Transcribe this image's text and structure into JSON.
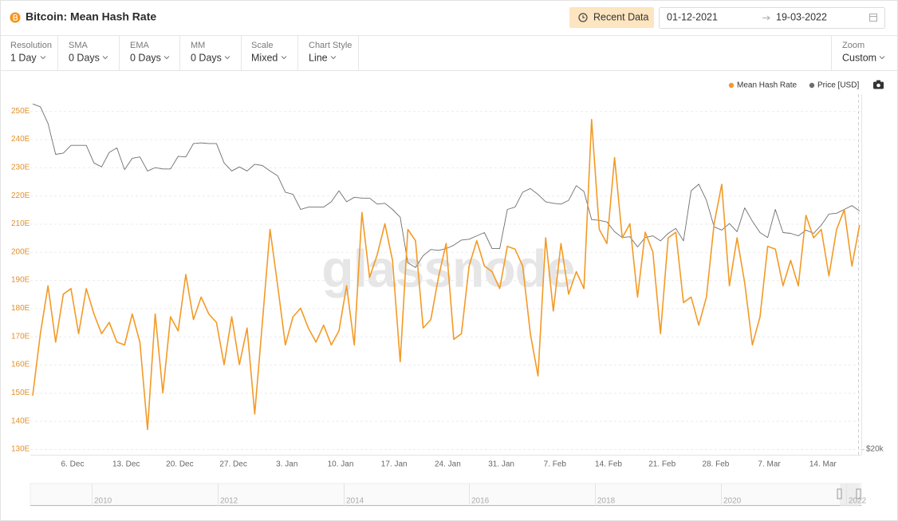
{
  "header": {
    "title": "Bitcoin: Mean Hash Rate",
    "button": "Recent Data",
    "date_from": "01-12-2021",
    "date_to": "19-03-2022"
  },
  "toolbar": [
    {
      "label": "Resolution",
      "value": "1 Day"
    },
    {
      "label": "SMA",
      "value": "0 Days"
    },
    {
      "label": "EMA",
      "value": "0 Days"
    },
    {
      "label": "MM",
      "value": "0 Days"
    },
    {
      "label": "Scale",
      "value": "Mixed"
    },
    {
      "label": "Chart Style",
      "value": "Line"
    },
    {
      "label": "Zoom",
      "value": "Custom"
    }
  ],
  "watermark": "glassnode",
  "navigator": {
    "labels": [
      "2010",
      "2012",
      "2014",
      "2016",
      "2018",
      "2020",
      "2022"
    ]
  },
  "chart_data": {
    "type": "line",
    "legend": "top-right",
    "grid": true,
    "categories": [
      null,
      null,
      null,
      null,
      null,
      "6. Dec",
      null,
      null,
      null,
      null,
      null,
      null,
      "13. Dec",
      null,
      null,
      null,
      null,
      null,
      null,
      "20. Dec",
      null,
      null,
      null,
      null,
      null,
      null,
      "27. Dec",
      null,
      null,
      null,
      null,
      null,
      null,
      "3. Jan",
      null,
      null,
      null,
      null,
      null,
      null,
      "10. Jan",
      null,
      null,
      null,
      null,
      null,
      null,
      "17. Jan",
      null,
      null,
      null,
      null,
      null,
      null,
      "24. Jan",
      null,
      null,
      null,
      null,
      null,
      null,
      "31. Jan",
      null,
      null,
      null,
      null,
      null,
      null,
      "7. Feb",
      null,
      null,
      null,
      null,
      null,
      null,
      "14. Feb",
      null,
      null,
      null,
      null,
      null,
      null,
      "21. Feb",
      null,
      null,
      null,
      null,
      null,
      null,
      "28. Feb",
      null,
      null,
      null,
      null,
      null,
      null,
      "7. Mar",
      null,
      null,
      null,
      null,
      null,
      null,
      "14. Mar",
      null,
      null,
      null,
      null,
      null
    ],
    "ylim": [
      130,
      256
    ],
    "yticks": [
      {
        "value": 130,
        "label": "130E"
      },
      {
        "value": 140,
        "label": "140E"
      },
      {
        "value": 150,
        "label": "150E"
      },
      {
        "value": 160,
        "label": "160E"
      },
      {
        "value": 170,
        "label": "170E"
      },
      {
        "value": 180,
        "label": "180E"
      },
      {
        "value": 190,
        "label": "190E"
      },
      {
        "value": 200,
        "label": "200E"
      },
      {
        "value": 210,
        "label": "210E"
      },
      {
        "value": 220,
        "label": "220E"
      },
      {
        "value": 230,
        "label": "230E"
      },
      {
        "value": 240,
        "label": "240E"
      },
      {
        "value": 250,
        "label": "250E"
      }
    ],
    "y2lim": [
      20000,
      60000
    ],
    "y2scale": "log",
    "y2ticks": [
      {
        "value": 20000,
        "label": "$20k"
      }
    ],
    "series": [
      {
        "name": "Mean Hash Rate",
        "color": "#f39a26",
        "values": [
          149,
          171,
          188,
          168,
          185,
          187,
          171,
          187,
          178,
          171,
          175,
          168,
          167,
          178,
          168,
          137,
          178,
          150,
          177,
          172,
          192,
          176,
          184,
          178,
          175,
          160,
          177,
          160,
          173,
          142.5,
          175,
          208,
          188,
          167,
          177,
          180,
          173,
          168,
          174,
          167,
          172,
          188,
          167,
          214,
          191,
          199,
          210,
          197,
          161,
          208,
          204,
          173,
          176,
          191,
          203,
          169,
          171,
          195,
          204,
          195,
          193,
          187,
          202,
          201,
          195,
          171,
          156,
          205,
          179,
          203,
          185,
          193,
          187,
          247,
          208,
          203,
          233.5,
          205,
          210,
          184,
          207,
          200,
          171,
          205,
          207,
          182,
          184,
          174,
          184,
          210,
          224,
          188,
          205,
          189,
          167,
          177,
          202,
          201,
          188,
          197,
          188,
          213,
          205,
          208,
          191.5,
          208,
          215,
          195,
          209.5
        ]
      },
      {
        "name": "Price [USD]",
        "color": "#6e6e6e",
        "axis": "y2",
        "values": [
          58200,
          57700,
          54800,
          49800,
          50000,
          51200,
          51200,
          51200,
          48500,
          47900,
          50100,
          50800,
          47500,
          49200,
          49400,
          47300,
          47800,
          47600,
          47600,
          49500,
          49400,
          51500,
          51600,
          51500,
          51500,
          48500,
          47300,
          47900,
          47300,
          48300,
          48100,
          47300,
          46600,
          44300,
          44000,
          42000,
          42300,
          42300,
          42300,
          43000,
          44500,
          43000,
          43600,
          43500,
          43500,
          42700,
          42800,
          42000,
          41000,
          35600,
          35100,
          36400,
          37100,
          37000,
          37200,
          37600,
          38200,
          38300,
          38700,
          39100,
          37200,
          37200,
          42000,
          42300,
          44300,
          44800,
          44000,
          43000,
          42800,
          42700,
          43200,
          45200,
          44400,
          40700,
          40600,
          40400,
          39200,
          38500,
          38600,
          37400,
          38500,
          38700,
          38100,
          39000,
          39600,
          38100,
          44500,
          45400,
          43200,
          39800,
          39400,
          40200,
          39200,
          42200,
          40500,
          39100,
          38500,
          42000,
          39100,
          39000,
          38700,
          39400,
          39000,
          40000,
          41400,
          41500,
          42000,
          42500,
          41800
        ]
      }
    ]
  }
}
